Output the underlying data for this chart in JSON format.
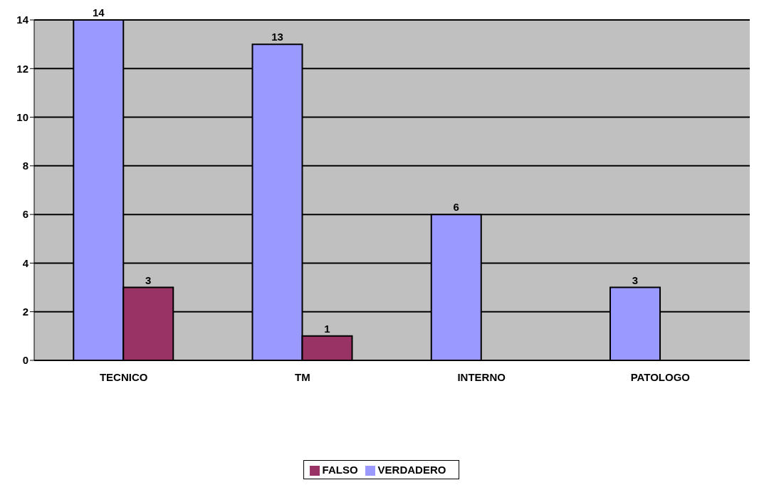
{
  "chart_data": {
    "type": "bar",
    "categories": [
      "TECNICO",
      "TM",
      "INTERNO",
      "PATOLOGO"
    ],
    "series": [
      {
        "name": "VERDADERO",
        "color": "#9999ff",
        "values": [
          14,
          13,
          6,
          3
        ]
      },
      {
        "name": "FALSO",
        "color": "#993366",
        "values": [
          3,
          1,
          null,
          null
        ]
      }
    ],
    "ylim": [
      0,
      14
    ],
    "yticks": [
      0,
      2,
      4,
      6,
      8,
      10,
      12,
      14
    ],
    "grid": "y",
    "legend": "bottom",
    "data_labels": true
  }
}
